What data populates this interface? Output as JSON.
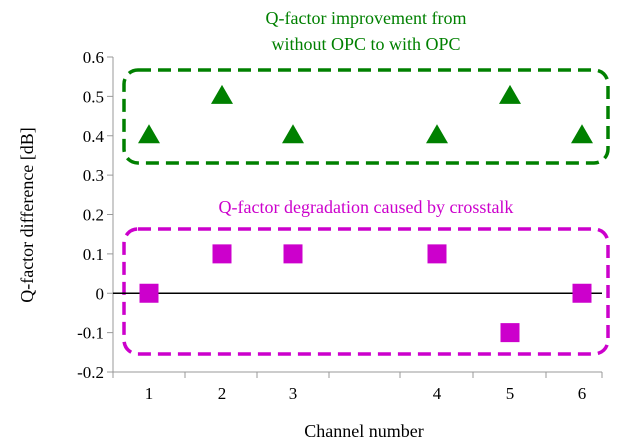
{
  "chart_data": {
    "type": "scatter",
    "xlabel": "Channel number",
    "ylabel": "Q-factor difference [dB]",
    "ylim": [
      -0.2,
      0.6
    ],
    "yticks": [
      "-0.2",
      "-0.1",
      "0",
      "0.1",
      "0.2",
      "0.3",
      "0.4",
      "0.5",
      "0.6"
    ],
    "xticks": [
      "1",
      "2",
      "3",
      "4",
      "5",
      "6"
    ],
    "grid": false,
    "series": [
      {
        "marker": "triangle",
        "color": "#008000",
        "x": [
          1,
          2,
          3,
          4,
          5,
          6
        ],
        "y": [
          0.4,
          0.5,
          0.4,
          0.4,
          0.5,
          0.4
        ]
      },
      {
        "marker": "square",
        "color": "#CC00CC",
        "x": [
          1,
          2,
          3,
          4,
          5,
          6
        ],
        "y": [
          0.0,
          0.1,
          0.1,
          0.1,
          -0.1,
          0.0
        ]
      }
    ],
    "annotations": [
      {
        "lines": [
          "Q-factor improvement from",
          "without OPC to with OPC"
        ],
        "color": "#008000"
      },
      {
        "lines": [
          "Q-factor degradation caused by crosstalk"
        ],
        "color": "#CC00CC"
      }
    ]
  }
}
